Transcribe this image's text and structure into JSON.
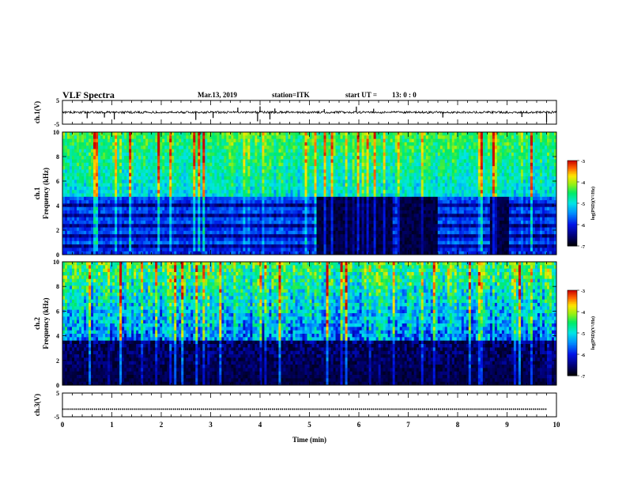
{
  "header": {
    "title": "VLF Spectra",
    "date": "Mar.13, 2019",
    "station": "station=ITK",
    "start": "start UT =",
    "start_value": "13: 0 : 0"
  },
  "chart_data": [
    {
      "type": "line",
      "panel": "ch1-waveform",
      "ylabel": "ch.1(V)",
      "ylim": [
        -5,
        5
      ],
      "yticks": [
        "5",
        "-5"
      ],
      "xlim": [
        0,
        10
      ],
      "baseline": 0,
      "series": [
        {
          "values": [
            0.2,
            -0.1,
            0.3,
            -0.2,
            0.1
          ]
        }
      ],
      "spikes": [
        {
          "x": 0.5,
          "y": -2.5
        },
        {
          "x": 0.85,
          "y": -2.2
        },
        {
          "x": 1.05,
          "y": -3.0
        },
        {
          "x": 2.7,
          "y": -3.2
        },
        {
          "x": 3.05,
          "y": -2.4
        },
        {
          "x": 3.55,
          "y": 2.0
        },
        {
          "x": 3.95,
          "y": -3.8
        },
        {
          "x": 4.0,
          "y": 2.5
        },
        {
          "x": 4.2,
          "y": -3.0
        },
        {
          "x": 4.3,
          "y": 1.6
        },
        {
          "x": 5.3,
          "y": 1.3
        },
        {
          "x": 5.95,
          "y": 2.4
        },
        {
          "x": 6.3,
          "y": 1.5
        },
        {
          "x": 7.7,
          "y": -2.2
        },
        {
          "x": 9.3,
          "y": -2.0
        },
        {
          "x": 9.8,
          "y": -4.2
        }
      ]
    },
    {
      "type": "heatmap",
      "panel": "ch1-spectrogram",
      "ylabel": "ch.1 Frequency (kHz)",
      "ylim": [
        0,
        10
      ],
      "yticks": [
        "0",
        "2",
        "4",
        "6",
        "8",
        "10"
      ],
      "xlim": [
        0,
        10
      ],
      "colorbar": {
        "label": "log(PSD)(V²/Hz)",
        "range": [
          -7,
          -3
        ],
        "ticks": [
          "-3",
          "-4",
          "-5",
          "-6",
          "-7"
        ]
      },
      "quiet_intervals_min": [
        [
          5.15,
          6.7
        ],
        [
          6.8,
          7.6
        ],
        [
          8.65,
          9.05
        ]
      ],
      "banded_below_kHz": 4.8
    },
    {
      "type": "heatmap",
      "panel": "ch2-spectrogram",
      "ylabel": "ch.2 Frequency (kHz)",
      "ylim": [
        0,
        10
      ],
      "yticks": [
        "0",
        "2",
        "4",
        "6",
        "8",
        "10"
      ],
      "xlim": [
        0,
        10
      ],
      "colorbar": {
        "label": "log(PSD)(V²/Hz)",
        "range": [
          -7,
          -3
        ],
        "ticks": [
          "-3",
          "-4",
          "-5",
          "-6",
          "-7"
        ]
      },
      "quiet_below_kHz": 3.5
    },
    {
      "type": "line",
      "panel": "ch3-waveform",
      "ylabel": "ch.3(V)",
      "ylim": [
        -5,
        5
      ],
      "yticks": [
        "5",
        "-5"
      ],
      "xlim": [
        0,
        10
      ],
      "xticks": [
        "0",
        "1",
        "2",
        "3",
        "4",
        "5",
        "6",
        "7",
        "8",
        "9",
        "10"
      ],
      "xlabel": "Time (min)",
      "series": [
        {
          "values": [
            -1.8,
            -1.8
          ]
        }
      ]
    }
  ]
}
